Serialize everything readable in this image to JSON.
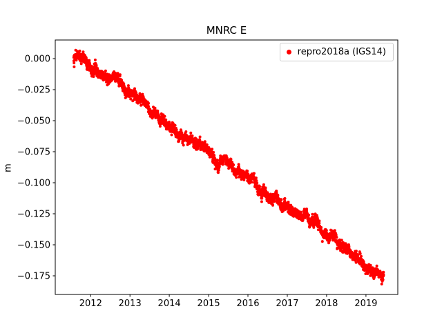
{
  "chart_data": {
    "type": "scatter",
    "title": "MNRC E",
    "xlabel": "",
    "ylabel": "m",
    "grid": false,
    "legend_position": "upper right",
    "xlim": [
      2011.1,
      2019.81
    ],
    "ylim": [
      -0.19,
      0.015
    ],
    "x_ticks": [
      2012,
      2013,
      2014,
      2015,
      2016,
      2017,
      2018,
      2019
    ],
    "y_ticks": [
      0.0,
      -0.025,
      -0.05,
      -0.075,
      -0.1,
      -0.125,
      -0.15,
      -0.175
    ],
    "series": [
      {
        "name": "repro2018a (IGS14)",
        "color": "#ff0000",
        "marker": "dot",
        "x_start": 2011.57,
        "x_end": 2019.45,
        "y_start": 0.002,
        "y_end": -0.176,
        "trend_m_per_year": -0.0226,
        "n_points": 2870,
        "noise_std_m": 0.0018,
        "walk_std_m": 0.0006,
        "seed": 42
      }
    ]
  }
}
